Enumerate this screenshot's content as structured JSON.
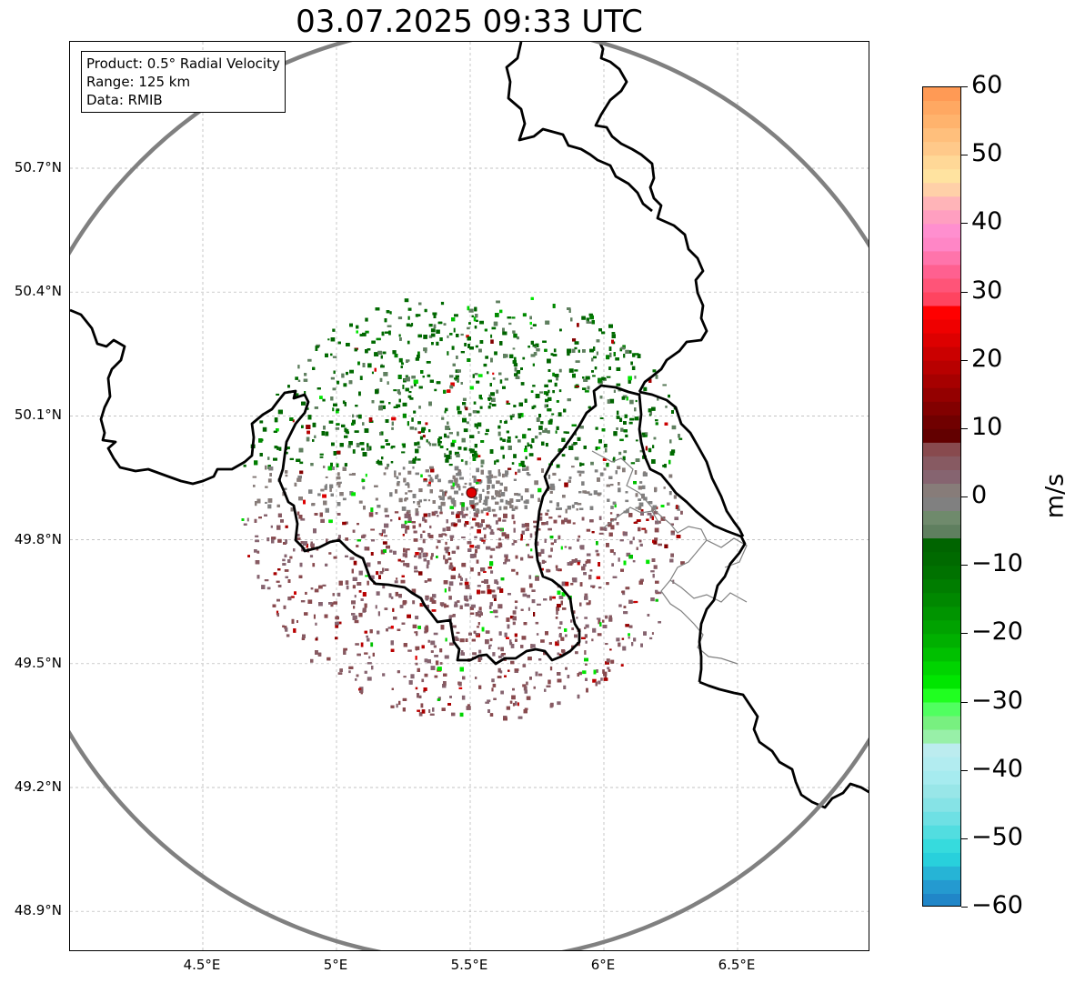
{
  "title": "03.07.2025 09:33 UTC",
  "info_box": {
    "line1": "Product: 0.5° Radial Velocity",
    "line2": "Range: 125 km",
    "line3": "Data: RMIB"
  },
  "map": {
    "lon_ticks": [
      {
        "value": 4.5,
        "label": "4.5°E"
      },
      {
        "value": 5.0,
        "label": "5°E"
      },
      {
        "value": 5.5,
        "label": "5.5°E"
      },
      {
        "value": 6.0,
        "label": "6°E"
      },
      {
        "value": 6.5,
        "label": "6.5°E"
      }
    ],
    "lat_ticks": [
      {
        "value": 50.7,
        "label": "50.7°N"
      },
      {
        "value": 50.4,
        "label": "50.4°N"
      },
      {
        "value": 50.1,
        "label": "50.1°N"
      },
      {
        "value": 49.8,
        "label": "49.8°N"
      },
      {
        "value": 49.5,
        "label": "49.5°N"
      },
      {
        "value": 49.2,
        "label": "49.2°N"
      },
      {
        "value": 48.9,
        "label": "48.9°N"
      }
    ],
    "radar_site": {
      "lon": 5.505,
      "lat": 49.914
    },
    "range_ring_km": 125,
    "colors": {
      "range_ring": "#808080",
      "border": "#000000",
      "admin_border": "#808080",
      "radar_marker": "#e00000",
      "grid": "#b0b0b0"
    }
  },
  "colorbar": {
    "unit": "m/s",
    "min": -60,
    "max": 60,
    "ticks": [
      {
        "value": 60,
        "label": "60"
      },
      {
        "value": 50,
        "label": "50"
      },
      {
        "value": 40,
        "label": "40"
      },
      {
        "value": 30,
        "label": "30"
      },
      {
        "value": 20,
        "label": "20"
      },
      {
        "value": 10,
        "label": "10"
      },
      {
        "value": 0,
        "label": "0"
      },
      {
        "value": -10,
        "label": "−10"
      },
      {
        "value": -20,
        "label": "−20"
      },
      {
        "value": -30,
        "label": "−30"
      },
      {
        "value": -40,
        "label": "−40"
      },
      {
        "value": -50,
        "label": "−50"
      },
      {
        "value": -60,
        "label": "−60"
      }
    ],
    "bands": [
      {
        "from": 58,
        "to": 60,
        "color": "#ff9a55"
      },
      {
        "from": 56,
        "to": 58,
        "color": "#ffa862"
      },
      {
        "from": 54,
        "to": 56,
        "color": "#ffb36d"
      },
      {
        "from": 52,
        "to": 54,
        "color": "#ffbf7c"
      },
      {
        "from": 50,
        "to": 52,
        "color": "#ffc98a"
      },
      {
        "from": 48,
        "to": 50,
        "color": "#ffd897"
      },
      {
        "from": 46,
        "to": 48,
        "color": "#ffe3a0"
      },
      {
        "from": 44,
        "to": 46,
        "color": "#ffd0a8"
      },
      {
        "from": 42,
        "to": 44,
        "color": "#ffb4b8"
      },
      {
        "from": 40,
        "to": 42,
        "color": "#ff9fc0"
      },
      {
        "from": 38,
        "to": 40,
        "color": "#ff8fcf"
      },
      {
        "from": 36,
        "to": 38,
        "color": "#ff86c6"
      },
      {
        "from": 34,
        "to": 36,
        "color": "#ff74ab"
      },
      {
        "from": 32,
        "to": 34,
        "color": "#ff6090"
      },
      {
        "from": 30,
        "to": 32,
        "color": "#ff5478"
      },
      {
        "from": 28,
        "to": 30,
        "color": "#ff4460"
      },
      {
        "from": 26,
        "to": 28,
        "color": "#ff0000"
      },
      {
        "from": 24,
        "to": 26,
        "color": "#ef0000"
      },
      {
        "from": 22,
        "to": 24,
        "color": "#dd0000"
      },
      {
        "from": 20,
        "to": 22,
        "color": "#cb0000"
      },
      {
        "from": 18,
        "to": 20,
        "color": "#b80000"
      },
      {
        "from": 16,
        "to": 18,
        "color": "#a60000"
      },
      {
        "from": 14,
        "to": 16,
        "color": "#940000"
      },
      {
        "from": 12,
        "to": 14,
        "color": "#820000"
      },
      {
        "from": 10,
        "to": 12,
        "color": "#700000"
      },
      {
        "from": 8,
        "to": 10,
        "color": "#620000"
      },
      {
        "from": 6,
        "to": 8,
        "color": "#884a4e"
      },
      {
        "from": 4,
        "to": 6,
        "color": "#875a62"
      },
      {
        "from": 2,
        "to": 4,
        "color": "#866470"
      },
      {
        "from": 0,
        "to": 2,
        "color": "#877c79"
      },
      {
        "from": -2,
        "to": 0,
        "color": "#808080"
      },
      {
        "from": -4,
        "to": -2,
        "color": "#6f8a6c"
      },
      {
        "from": -6,
        "to": -4,
        "color": "#5f7f5f"
      },
      {
        "from": -8,
        "to": -6,
        "color": "#006400"
      },
      {
        "from": -10,
        "to": -8,
        "color": "#006a00"
      },
      {
        "from": -12,
        "to": -10,
        "color": "#007200"
      },
      {
        "from": -14,
        "to": -12,
        "color": "#007d00"
      },
      {
        "from": -16,
        "to": -14,
        "color": "#008800"
      },
      {
        "from": -18,
        "to": -16,
        "color": "#009400"
      },
      {
        "from": -20,
        "to": -18,
        "color": "#00a200"
      },
      {
        "from": -22,
        "to": -20,
        "color": "#00b000"
      },
      {
        "from": -24,
        "to": -22,
        "color": "#00c000"
      },
      {
        "from": -26,
        "to": -24,
        "color": "#00d400"
      },
      {
        "from": -28,
        "to": -26,
        "color": "#00e600"
      },
      {
        "from": -30,
        "to": -28,
        "color": "#20ff20"
      },
      {
        "from": -32,
        "to": -30,
        "color": "#50ff60"
      },
      {
        "from": -34,
        "to": -32,
        "color": "#78f080"
      },
      {
        "from": -36,
        "to": -34,
        "color": "#98f0a8"
      },
      {
        "from": -38,
        "to": -36,
        "color": "#bcecef"
      },
      {
        "from": -40,
        "to": -38,
        "color": "#b2ecf0"
      },
      {
        "from": -42,
        "to": -40,
        "color": "#a6ebef"
      },
      {
        "from": -44,
        "to": -42,
        "color": "#98e6e8"
      },
      {
        "from": -46,
        "to": -44,
        "color": "#86e3e6"
      },
      {
        "from": -48,
        "to": -46,
        "color": "#6ee0e4"
      },
      {
        "from": -50,
        "to": -48,
        "color": "#52dde0"
      },
      {
        "from": -52,
        "to": -50,
        "color": "#36dbdd"
      },
      {
        "from": -54,
        "to": -52,
        "color": "#28d0dc"
      },
      {
        "from": -56,
        "to": -54,
        "color": "#26b4d6"
      },
      {
        "from": -58,
        "to": -56,
        "color": "#249ad0"
      },
      {
        "from": -60,
        "to": -58,
        "color": "#2086c8"
      }
    ]
  }
}
